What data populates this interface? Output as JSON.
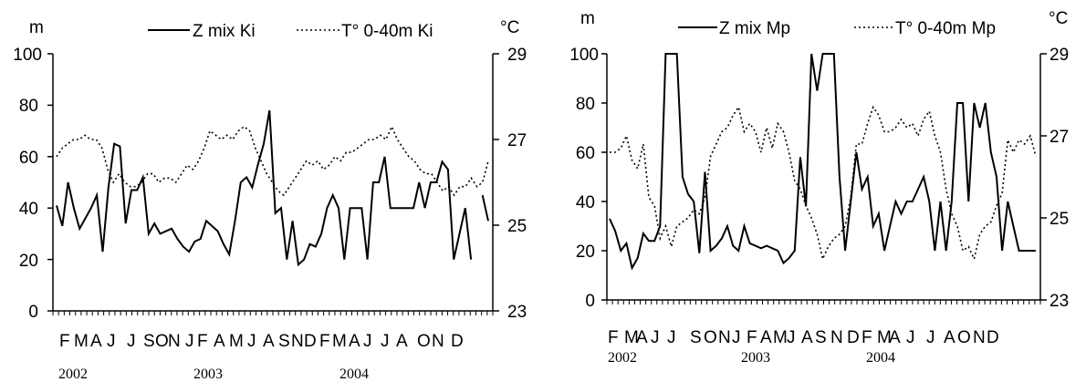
{
  "chart_data": [
    {
      "type": "line",
      "units": {
        "left": "m",
        "right": "°C"
      },
      "y_left_ticks": [
        "0",
        "20",
        "40",
        "60",
        "80",
        "100"
      ],
      "y_right_ticks": [
        "23",
        "25",
        "27",
        "29"
      ],
      "ylim_left": [
        0,
        100
      ],
      "ylim_right": [
        23,
        29
      ],
      "month_labels": [
        "F",
        "M",
        "A",
        "J",
        "J",
        "S",
        "O",
        "N",
        "J",
        "F",
        "A",
        "M",
        "J",
        "A",
        "S",
        "N",
        "D",
        "F",
        "M",
        "A",
        "J",
        "J",
        "A",
        "O",
        "N",
        "D"
      ],
      "year_labels": [
        "2002",
        "2003",
        "2004"
      ],
      "grid": false,
      "legend_position": "top",
      "series": [
        {
          "name": "Z mix Ki",
          "axis": "left",
          "style": "solid",
          "values": [
            41,
            33,
            50,
            40,
            32,
            36,
            40,
            45,
            23,
            48,
            65,
            64,
            34,
            47,
            47,
            52,
            30,
            34,
            30,
            31,
            32,
            28,
            25,
            23,
            27,
            28,
            35,
            33,
            31,
            26,
            22,
            35,
            50,
            52,
            48,
            57,
            65,
            78,
            38,
            40,
            20,
            35,
            18,
            20,
            26,
            25,
            30,
            40,
            45,
            40,
            20,
            40,
            40,
            40,
            20,
            50,
            50,
            60,
            40,
            40,
            40,
            40,
            40,
            50,
            40,
            50,
            50,
            58,
            55,
            20,
            30,
            40,
            20,
            null,
            45,
            35
          ]
        },
        {
          "name": "T° 0-40m Ki",
          "axis": "right",
          "style": "dotted",
          "values": [
            26.6,
            26.8,
            26.9,
            27.0,
            27.0,
            27.1,
            27.0,
            27.0,
            26.8,
            26.3,
            26.0,
            26.2,
            26.0,
            25.9,
            25.9,
            26.0,
            26.2,
            26.2,
            26.0,
            26.1,
            26.1,
            26.0,
            26.2,
            26.4,
            26.3,
            26.5,
            26.8,
            27.2,
            27.1,
            27.0,
            27.1,
            27.0,
            27.2,
            27.3,
            27.2,
            26.8,
            26.5,
            26.2,
            26.0,
            25.8,
            25.7,
            25.9,
            26.1,
            26.3,
            26.5,
            26.4,
            26.5,
            26.3,
            26.4,
            26.6,
            26.5,
            26.7,
            26.7,
            26.8,
            26.9,
            27.0,
            27.0,
            27.1,
            27.0,
            27.3,
            27.0,
            26.8,
            26.6,
            26.5,
            26.3,
            26.2,
            26.2,
            26.0,
            25.8,
            25.9,
            25.7,
            25.9,
            25.9,
            26.1,
            25.9,
            26.0,
            26.5
          ]
        }
      ]
    },
    {
      "type": "line",
      "units": {
        "left": "m",
        "right": "°C"
      },
      "y_left_ticks": [
        "0",
        "20",
        "40",
        "60",
        "80",
        "100"
      ],
      "y_right_ticks": [
        "23",
        "25",
        "27",
        "29"
      ],
      "ylim_left": [
        0,
        100
      ],
      "ylim_right": [
        23,
        29
      ],
      "month_labels": [
        "F",
        "M",
        "A",
        "J",
        "J",
        "S",
        "O",
        "N",
        "J",
        "F",
        "A",
        "M",
        "J",
        "A",
        "S",
        "N",
        "D",
        "F",
        "M",
        "A",
        "J",
        "J",
        "A",
        "O",
        "N",
        "D"
      ],
      "year_labels": [
        "2002",
        "2003",
        "2004"
      ],
      "grid": false,
      "legend_position": "top",
      "series": [
        {
          "name": "Z mix Mp",
          "axis": "left",
          "style": "solid",
          "values": [
            33,
            28,
            20,
            23,
            13,
            17,
            27,
            24,
            24,
            30,
            100,
            100,
            100,
            50,
            43,
            40,
            19,
            52,
            20,
            22,
            25,
            30,
            22,
            20,
            30,
            23,
            22,
            21,
            22,
            21,
            20,
            15,
            17,
            20,
            58,
            38,
            100,
            85,
            100,
            100,
            100,
            50,
            20,
            40,
            60,
            45,
            50,
            30,
            35,
            20,
            30,
            40,
            35,
            40,
            40,
            45,
            50,
            40,
            20,
            40,
            20,
            40,
            80,
            80,
            40,
            80,
            70,
            80,
            60,
            50,
            20,
            40,
            30,
            20,
            20,
            20,
            20
          ]
        },
        {
          "name": "T° 0-40m Mp",
          "axis": "right",
          "style": "dotted",
          "values": [
            26.6,
            26.6,
            26.7,
            27.0,
            26.4,
            26.2,
            26.8,
            25.5,
            25.3,
            24.5,
            24.8,
            24.3,
            24.8,
            24.9,
            25.0,
            25.2,
            25.1,
            25.5,
            26.5,
            26.8,
            27.1,
            27.2,
            27.5,
            27.7,
            27.1,
            27.3,
            27.1,
            26.6,
            27.2,
            26.7,
            27.3,
            27.1,
            26.6,
            25.9,
            25.7,
            25.3,
            25.0,
            24.6,
            24.0,
            24.3,
            24.5,
            24.6,
            24.8,
            25.5,
            26.8,
            26.8,
            27.3,
            27.7,
            27.5,
            27.1,
            27.1,
            27.2,
            27.4,
            27.2,
            27.3,
            27.0,
            27.4,
            27.6,
            27.0,
            26.6,
            25.7,
            25.1,
            24.8,
            24.2,
            24.3,
            24.0,
            24.6,
            24.8,
            24.9,
            25.3,
            25.6,
            26.9,
            26.6,
            26.9,
            26.8,
            27.0,
            26.5
          ]
        }
      ]
    }
  ]
}
